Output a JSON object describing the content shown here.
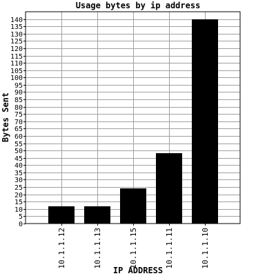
{
  "chart_data": {
    "type": "bar",
    "title": "Usage bytes by ip address",
    "xlabel": "IP ADDRESS",
    "ylabel": "Bytes Sent",
    "categories": [
      "10.1.1.12",
      "10.1.1.13",
      "10.1.1.15",
      "10.1.1.11",
      "10.1.1.10"
    ],
    "values": [
      12,
      12,
      24,
      48,
      140
    ],
    "ylim": [
      0,
      145
    ],
    "yticks": [
      0,
      5,
      10,
      15,
      20,
      25,
      30,
      35,
      40,
      45,
      50,
      55,
      60,
      65,
      70,
      75,
      80,
      85,
      90,
      95,
      100,
      105,
      110,
      115,
      120,
      125,
      130,
      135,
      140
    ],
    "grid": true,
    "colors": {
      "bar": "#000000",
      "grid": "#a0a0a0",
      "background": "#ffffff"
    }
  }
}
